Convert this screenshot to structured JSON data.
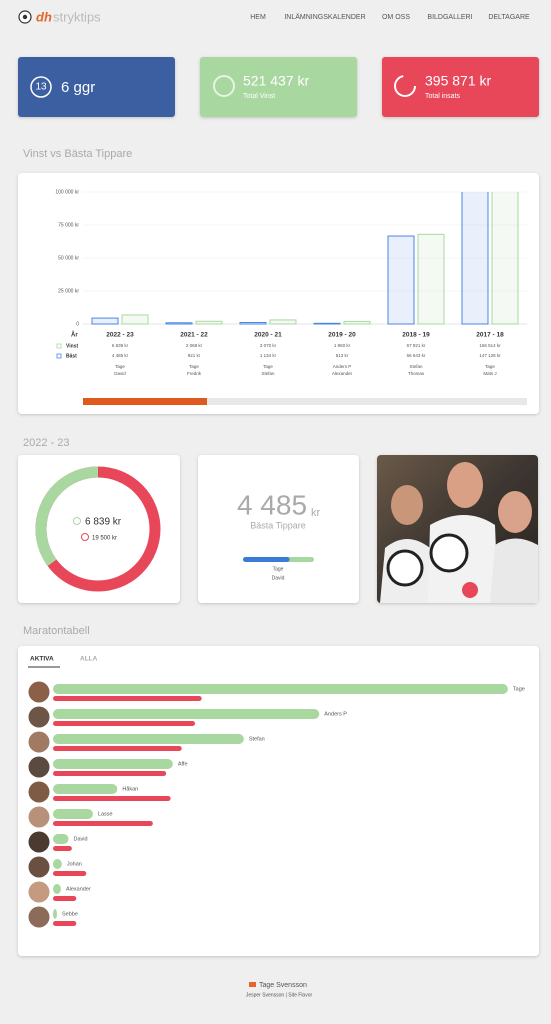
{
  "header": {
    "logo_brand": "dh",
    "logo_name": "stryktips",
    "nav": [
      "HEM",
      "INLÄMNINGSKALENDER",
      "OM OSS",
      "BILDGALLERI",
      "DELTAGARE"
    ]
  },
  "stats": [
    {
      "icon": "13",
      "value": "6 ggr"
    },
    {
      "value": "521 437 kr",
      "label": "Total Vinst"
    },
    {
      "value": "395 871 kr",
      "label": "Total insats"
    }
  ],
  "chart_section_title": "Vinst vs Bästa Tippare",
  "chart_data": {
    "type": "bar",
    "category_label": "År",
    "categories": [
      "2022 - 23",
      "2021 - 22",
      "2020 - 21",
      "2019 - 20",
      "2018 - 19",
      "2017 - 18"
    ],
    "series": [
      {
        "name": "Vinst",
        "color": "#a8d8a0",
        "values": [
          6839,
          2068,
          3070,
          1950,
          67921,
          166514
        ],
        "value_labels": [
          "6 839 kr",
          "2 068 kr",
          "3 070 kr",
          "1 950 kr",
          "67 921 kr",
          "166 514 kr"
        ]
      },
      {
        "name": "Bäst",
        "color": "#4a86e8",
        "values": [
          4485,
          921,
          1134,
          513,
          66643,
          147128
        ],
        "value_labels": [
          "4 485 kr",
          "921 kr",
          "1 134 kr",
          "513 kr",
          "66 643 kr",
          "147 128 kr"
        ]
      }
    ],
    "leaders": [
      [
        "Tage",
        "David"
      ],
      [
        "Tage",
        "Fredrik"
      ],
      [
        "Tage",
        "Stefan"
      ],
      [
        "Anders P",
        "Alexander"
      ],
      [
        "Stefan",
        "Thomas"
      ],
      [
        "Tage",
        "Mats J"
      ]
    ],
    "ylim": [
      0,
      100000
    ],
    "yticks": [
      0,
      {
        "value": 25000,
        "label": "25 000 kr"
      },
      {
        "value": 50000,
        "label": "50 000 kr"
      },
      {
        "value": 75000,
        "label": "75 000 kr"
      },
      {
        "value": 100000,
        "label": "100 000 kr"
      }
    ],
    "grid": true
  },
  "season": {
    "title": "2022 - 23",
    "winnings": {
      "value": 6839,
      "label": "6 839 kr",
      "color": "#a8d8a0"
    },
    "stakes": {
      "value": 19500,
      "label": "19 500 kr",
      "color": "#e8475a"
    },
    "best": {
      "value": 4485,
      "label": "4 485",
      "unit": "kr",
      "caption": "Bästa Tippare",
      "names": [
        "Tage",
        "David"
      ]
    }
  },
  "marathon": {
    "title": "Maratontabell",
    "tabs": [
      "AKTIVA",
      "ALLA"
    ],
    "players": [
      "Tage",
      "Anders P",
      "Stefan",
      "Affe",
      "Håkan",
      "Lasse",
      "David",
      "Johan",
      "Alexander",
      "Sebbe"
    ],
    "winnings": [
      205000,
      120000,
      86000,
      54000,
      29000,
      18000,
      7000,
      4000,
      3600,
      1800
    ],
    "stakes": [
      67000,
      64000,
      58000,
      51000,
      53000,
      45000,
      8500,
      15000,
      10500,
      10500
    ],
    "xlim": [
      0,
      210000
    ],
    "winnings_color": "#a8d8a0",
    "stakes_color": "#e8475a"
  },
  "footer": {
    "contact": "Tage Svensson",
    "credit": "Jesper Svensson | Site Flavor"
  }
}
